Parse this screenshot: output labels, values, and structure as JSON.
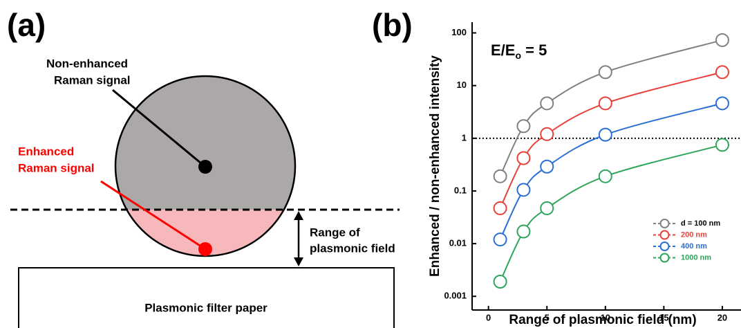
{
  "panel_a": {
    "label": "(a)",
    "non_enhanced": [
      "Non-enhanced",
      "Raman signal"
    ],
    "enhanced": [
      "Enhanced",
      "Raman signal"
    ],
    "range": [
      "Range of",
      "plasmonic field"
    ],
    "paper": "Plasmonic filter paper"
  },
  "chart_data": {
    "type": "line",
    "panel_label": "(b)",
    "annotation": {
      "base": "E/E",
      "sub": "o",
      "rest": " = 5"
    },
    "x_label": "Range of plasmonic field (nm)",
    "y_label": "Enhanced / non-enhanced intensity",
    "x": [
      1,
      3,
      5,
      10,
      20
    ],
    "series": [
      {
        "name": "d = 100 nm",
        "color": "#808080",
        "values": [
          0.19,
          1.7,
          4.6,
          18,
          73
        ]
      },
      {
        "name": "200 nm",
        "color": "#e8413b",
        "values": [
          0.047,
          0.42,
          1.2,
          4.6,
          18
        ]
      },
      {
        "name": "400 nm",
        "color": "#2a6fd1",
        "values": [
          0.012,
          0.105,
          0.29,
          1.17,
          4.6
        ]
      },
      {
        "name": "1000 nm",
        "color": "#2ea55a",
        "values": [
          0.0019,
          0.017,
          0.047,
          0.19,
          0.75
        ]
      }
    ],
    "xlim": [
      -1.4,
      21.6
    ],
    "ylim": [
      0.00055,
      160
    ],
    "log_y": true,
    "xticks": [
      0,
      5,
      10,
      15,
      20
    ],
    "yticks": [
      100,
      10,
      1,
      0.1,
      0.01,
      0.001
    ],
    "reference_line": 1,
    "legend": "lower-right"
  }
}
